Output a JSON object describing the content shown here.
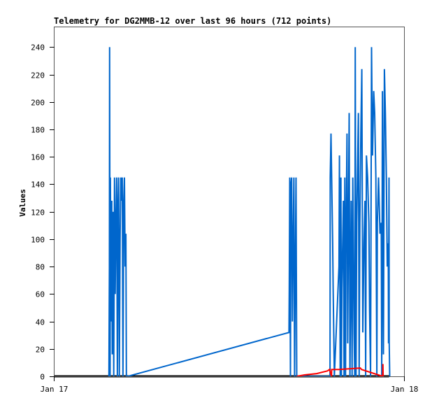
{
  "chart_data": {
    "type": "line",
    "title": "Telemetry for DG2MMB-12 over last 96 hours (712 points)",
    "xlabel": "",
    "ylabel": "Values",
    "x_ticks": [
      "Jan 17",
      "Jan 18"
    ],
    "xlim": [
      "Jan 17 00:00",
      "Jan 18 00:00"
    ],
    "y_ticks": [
      0,
      20,
      40,
      60,
      80,
      100,
      120,
      140,
      160,
      180,
      200,
      220,
      240
    ],
    "ylim": [
      0,
      255
    ],
    "grid": false,
    "legend": "none",
    "series": [
      {
        "color": "#000000",
        "points": [
          [
            "Jan 17 00:00",
            0
          ],
          [
            "Jan 17 22:58",
            0
          ]
        ]
      },
      {
        "color": "#0066cc",
        "points": [
          [
            "Jan 17 03:44",
            0
          ],
          [
            "Jan 17 03:46",
            80
          ],
          [
            "Jan 17 03:47",
            240
          ],
          [
            "Jan 17 03:49",
            0
          ],
          [
            "Jan 17 03:50",
            145
          ],
          [
            "Jan 17 03:53",
            40
          ],
          [
            "Jan 17 03:56",
            128
          ],
          [
            "Jan 17 03:58",
            16
          ],
          [
            "Jan 17 04:01",
            120
          ],
          [
            "Jan 17 04:04",
            0
          ],
          [
            "Jan 17 04:07",
            145
          ],
          [
            "Jan 17 04:10",
            60
          ],
          [
            "Jan 17 04:13",
            112
          ],
          [
            "Jan 17 04:16",
            145
          ],
          [
            "Jan 17 04:19",
            0
          ],
          [
            "Jan 17 04:22",
            128
          ],
          [
            "Jan 17 04:24",
            145
          ],
          [
            "Jan 17 04:27",
            0
          ],
          [
            "Jan 17 04:30",
            100
          ],
          [
            "Jan 17 04:33",
            145
          ],
          [
            "Jan 17 04:36",
            128
          ],
          [
            "Jan 17 04:39",
            145
          ],
          [
            "Jan 17 04:42",
            0
          ],
          [
            "Jan 17 04:45",
            128
          ],
          [
            "Jan 17 04:48",
            145
          ],
          [
            "Jan 17 04:51",
            80
          ],
          [
            "Jan 17 04:54",
            104
          ],
          [
            "Jan 17 04:56",
            0
          ],
          [
            "Jan 17 05:02",
            0
          ],
          [
            "Jan 17 16:06",
            32
          ],
          [
            "Jan 17 16:07",
            64
          ],
          [
            "Jan 17 16:09",
            145
          ],
          [
            "Jan 17 16:12",
            0
          ],
          [
            "Jan 17 16:14",
            140
          ],
          [
            "Jan 17 16:17",
            145
          ],
          [
            "Jan 17 16:20",
            40
          ],
          [
            "Jan 17 16:23",
            97
          ],
          [
            "Jan 17 16:26",
            145
          ],
          [
            "Jan 17 16:29",
            0
          ],
          [
            "Jan 17 16:32",
            73
          ],
          [
            "Jan 17 16:35",
            145
          ],
          [
            "Jan 17 16:38",
            0
          ],
          [
            "Jan 17 18:55",
            0
          ],
          [
            "Jan 17 18:56",
            145
          ],
          [
            "Jan 17 18:59",
            177
          ],
          [
            "Jan 17 19:06",
            97
          ],
          [
            "Jan 17 19:08",
            64
          ],
          [
            "Jan 17 19:13",
            0
          ],
          [
            "Jan 17 19:32",
            80
          ],
          [
            "Jan 17 19:34",
            161
          ],
          [
            "Jan 17 19:37",
            0
          ],
          [
            "Jan 17 19:40",
            145
          ],
          [
            "Jan 17 19:42",
            0
          ],
          [
            "Jan 17 19:44",
            64
          ],
          [
            "Jan 17 19:50",
            128
          ],
          [
            "Jan 17 19:53",
            0
          ],
          [
            "Jan 17 19:56",
            145
          ],
          [
            "Jan 17 19:59",
            0
          ],
          [
            "Jan 17 20:01",
            97
          ],
          [
            "Jan 17 20:05",
            177
          ],
          [
            "Jan 17 20:08",
            24
          ],
          [
            "Jan 17 20:14",
            192
          ],
          [
            "Jan 17 20:17",
            0
          ],
          [
            "Jan 17 20:19",
            48
          ],
          [
            "Jan 17 20:22",
            128
          ],
          [
            "Jan 17 20:26",
            0
          ],
          [
            "Jan 17 20:29",
            145
          ],
          [
            "Jan 17 20:34",
            32
          ],
          [
            "Jan 17 20:37",
            0
          ],
          [
            "Jan 17 20:39",
            240
          ],
          [
            "Jan 17 20:42",
            0
          ],
          [
            "Jan 17 20:45",
            112
          ],
          [
            "Jan 17 20:52",
            192
          ],
          [
            "Jan 17 20:55",
            0
          ],
          [
            "Jan 17 20:58",
            112
          ],
          [
            "Jan 17 21:02",
            177
          ],
          [
            "Jan 17 21:06",
            224
          ],
          [
            "Jan 17 21:10",
            32
          ],
          [
            "Jan 17 21:15",
            97
          ],
          [
            "Jan 17 21:19",
            128
          ],
          [
            "Jan 17 21:22",
            0
          ],
          [
            "Jan 17 21:25",
            161
          ],
          [
            "Jan 17 21:30",
            145
          ],
          [
            "Jan 17 21:35",
            112
          ],
          [
            "Jan 17 21:38",
            48
          ],
          [
            "Jan 17 21:42",
            0
          ],
          [
            "Jan 17 21:46",
            240
          ],
          [
            "Jan 17 21:50",
            161
          ],
          [
            "Jan 17 21:55",
            208
          ],
          [
            "Jan 17 21:59",
            192
          ],
          [
            "Jan 17 22:04",
            145
          ],
          [
            "Jan 17 22:08",
            0
          ],
          [
            "Jan 17 22:10",
            112
          ],
          [
            "Jan 17 22:15",
            145
          ],
          [
            "Jan 17 22:21",
            104
          ],
          [
            "Jan 17 22:26",
            112
          ],
          [
            "Jan 17 22:28",
            0
          ],
          [
            "Jan 17 22:31",
            208
          ],
          [
            "Jan 17 22:35",
            16
          ],
          [
            "Jan 17 22:39",
            224
          ],
          [
            "Jan 17 22:43",
            192
          ],
          [
            "Jan 17 22:47",
            145
          ],
          [
            "Jan 17 22:51",
            80
          ],
          [
            "Jan 17 22:55",
            97
          ],
          [
            "Jan 17 22:56",
            24
          ],
          [
            "Jan 17 22:58",
            145
          ],
          [
            "Jan 17 22:59",
            24
          ],
          [
            "Jan 17 23:01",
            0
          ]
        ]
      },
      {
        "color": "#ff0000",
        "points": [
          [
            "Jan 17 16:38",
            0
          ],
          [
            "Jan 17 17:10",
            1
          ],
          [
            "Jan 17 18:00",
            2
          ],
          [
            "Jan 17 18:45",
            4
          ],
          [
            "Jan 17 18:53",
            5
          ],
          [
            "Jan 17 19:01",
            0
          ],
          [
            "Jan 17 19:02",
            5
          ],
          [
            "Jan 17 19:30",
            5
          ],
          [
            "Jan 17 21:00",
            6
          ],
          [
            "Jan 17 21:05",
            5
          ],
          [
            "Jan 17 22:32",
            0
          ],
          [
            "Jan 17 22:33",
            9
          ],
          [
            "Jan 17 22:34",
            0
          ]
        ]
      }
    ]
  }
}
